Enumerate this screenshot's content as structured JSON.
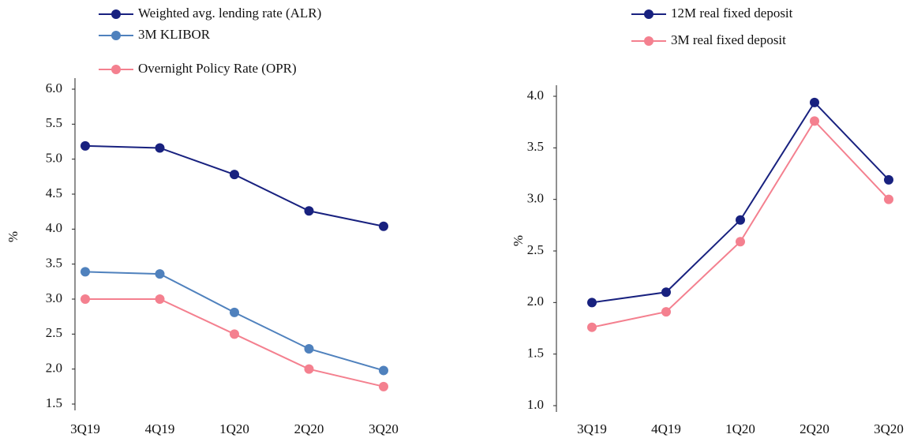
{
  "chart_data": [
    {
      "type": "line",
      "ylabel": "%",
      "categories": [
        "3Q19",
        "4Q19",
        "1Q20",
        "2Q20",
        "3Q20"
      ],
      "series": [
        {
          "name": "Weighted avg. lending rate (ALR)",
          "color": "#18217f",
          "values": [
            5.19,
            5.16,
            4.78,
            4.26,
            4.04
          ]
        },
        {
          "name": "3M KLIBOR",
          "color": "#4f81bd",
          "values": [
            3.39,
            3.36,
            2.81,
            2.29,
            1.98
          ]
        },
        {
          "name": "Overnight Policy Rate (OPR)",
          "color": "#f4808f",
          "values": [
            3.0,
            3.0,
            2.5,
            2.0,
            1.75
          ]
        }
      ],
      "ylim": [
        1.5,
        6.0
      ],
      "yticks": [
        1.5,
        {
          "value": 2,
          "label": "2.0"
        },
        2.5,
        {
          "value": 3,
          "label": "3.0"
        },
        3.5,
        {
          "value": 4,
          "label": "4.0"
        },
        4.5,
        {
          "value": 5,
          "label": "5.0"
        },
        5.5,
        {
          "value": 6,
          "label": "6.0"
        }
      ],
      "grid": false
    },
    {
      "type": "line",
      "ylabel": "%",
      "categories": [
        "3Q19",
        "4Q19",
        "1Q20",
        "2Q20",
        "3Q20"
      ],
      "series": [
        {
          "name": "12M real fixed deposit",
          "color": "#18217f",
          "values": [
            2.0,
            2.1,
            2.8,
            3.94,
            3.19
          ]
        },
        {
          "name": "3M real fixed deposit",
          "color": "#f4808f",
          "values": [
            1.76,
            1.91,
            2.59,
            3.76,
            3.0
          ]
        }
      ],
      "ylim": [
        1.0,
        4.0
      ],
      "yticks": [
        {
          "value": 1,
          "label": "1.0"
        },
        1.5,
        {
          "value": 2,
          "label": "2.0"
        },
        2.5,
        {
          "value": 3,
          "label": "3.0"
        },
        3.5,
        {
          "value": 4,
          "label": "4.0"
        }
      ],
      "grid": false
    }
  ]
}
